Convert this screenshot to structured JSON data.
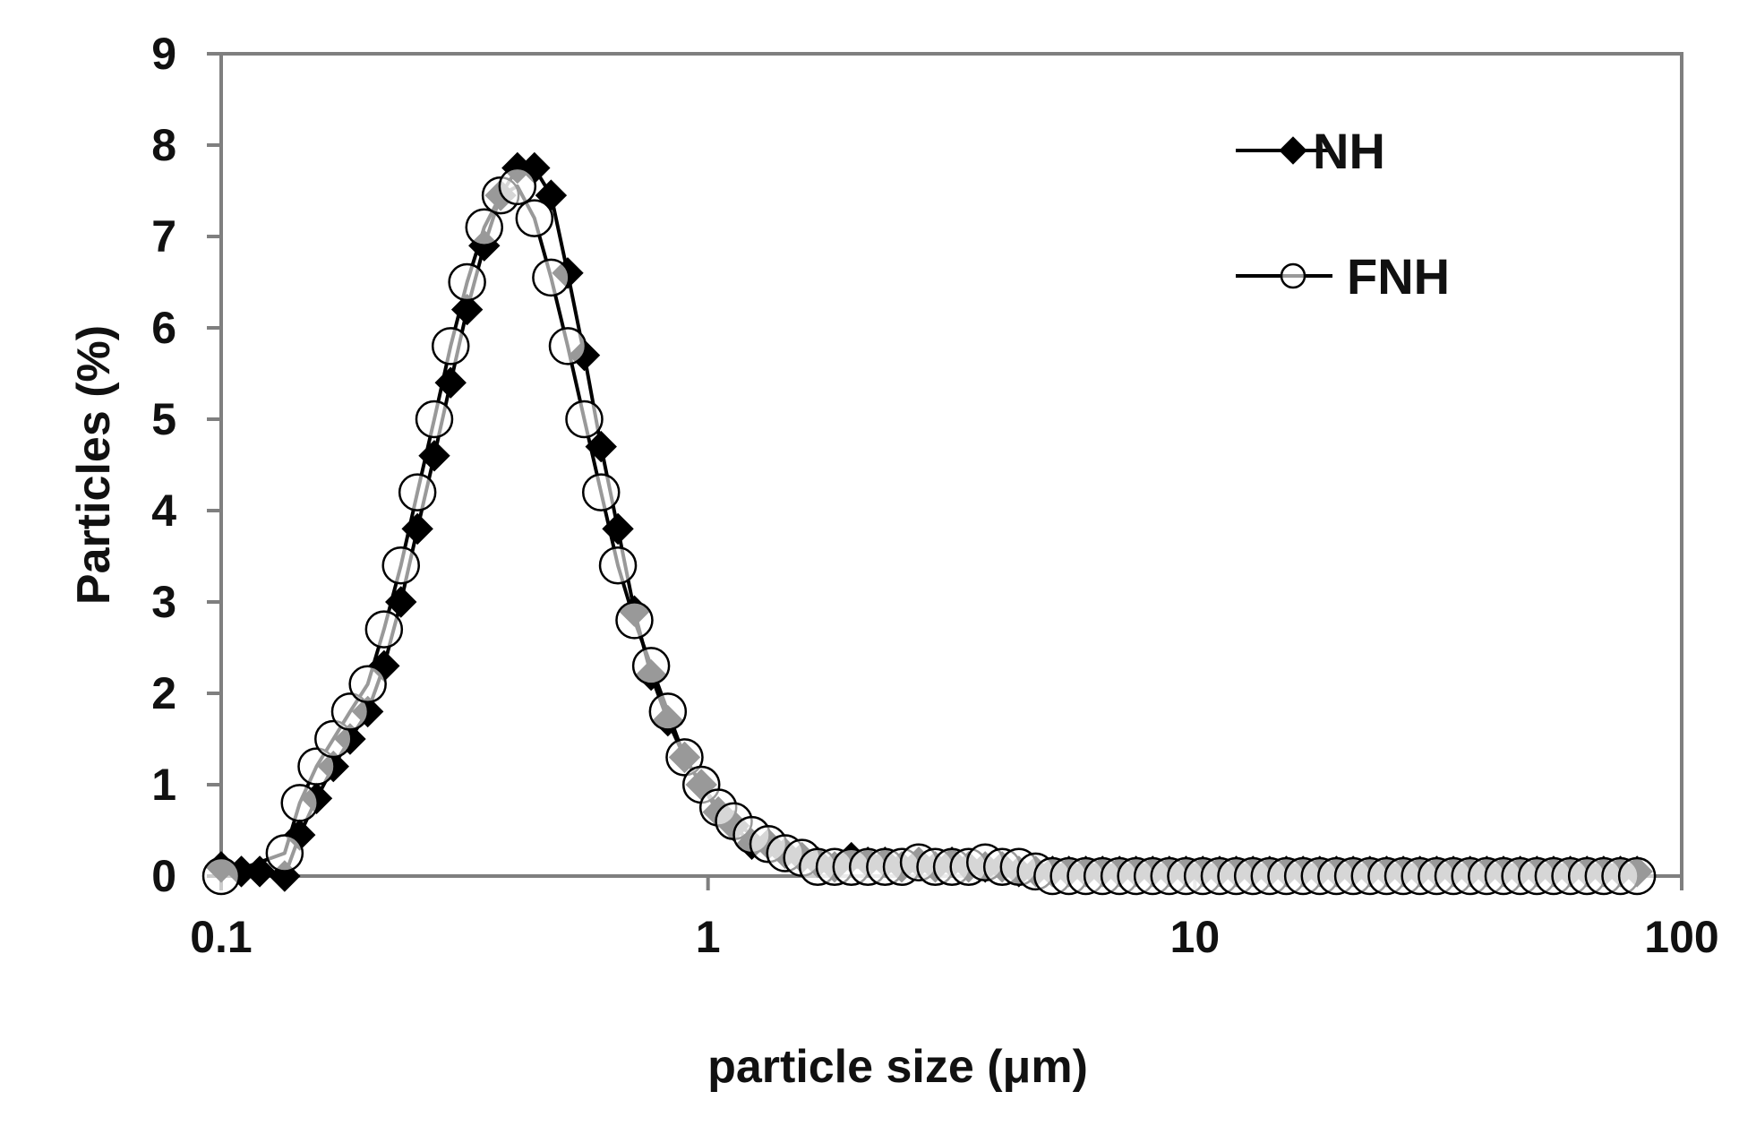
{
  "colors": {
    "axis": "#7f7f7f",
    "series": "#000000",
    "background": "#ffffff"
  },
  "chart_data": {
    "type": "line",
    "xlabel": "particle size (μm)",
    "ylabel": "Particles (%)",
    "xscale": "log",
    "xlim": [
      0.1,
      100
    ],
    "ylim": [
      0,
      9
    ],
    "xticks": [
      "0.1",
      "1",
      "10",
      "100"
    ],
    "yticks": [
      "0",
      "1",
      "2",
      "3",
      "4",
      "5",
      "6",
      "7",
      "8",
      "9"
    ],
    "grid": false,
    "legend_position": "top-right",
    "series": [
      {
        "name": "NH",
        "marker": "filled-diamond",
        "x": [
          0.1,
          0.11,
          0.12,
          0.135,
          0.145,
          0.157,
          0.17,
          0.184,
          0.2,
          0.216,
          0.234,
          0.253,
          0.274,
          0.296,
          0.32,
          0.347,
          0.375,
          0.406,
          0.44,
          0.476,
          0.515,
          0.557,
          0.603,
          0.653,
          0.706,
          0.764,
          0.827,
          0.895,
          0.969,
          1.05,
          1.13,
          1.23,
          1.33,
          1.44,
          1.56,
          1.68,
          1.82,
          1.97,
          2.13,
          2.31,
          2.5,
          2.71,
          2.93,
          3.17,
          3.43,
          3.71,
          4.02,
          4.35,
          4.71,
          5.1,
          5.51,
          5.97,
          6.46,
          7.0,
          7.57,
          8.19,
          8.86,
          9.59,
          10.38,
          11.24,
          12.16,
          13.16,
          14.24,
          15.41,
          16.68,
          18.05,
          19.53,
          21.14,
          22.88,
          24.76,
          26.79,
          28.99,
          31.38,
          33.96,
          36.75,
          39.77,
          43.04,
          46.58,
          50.41,
          54.55,
          59.03,
          63.88,
          69.13,
          74.81,
          80.96
        ],
        "y": [
          0.1,
          0.05,
          0.05,
          0.0,
          0.45,
          0.85,
          1.2,
          1.5,
          1.8,
          2.3,
          3.0,
          3.8,
          4.6,
          5.4,
          6.2,
          6.9,
          7.45,
          7.75,
          7.75,
          7.45,
          6.6,
          5.7,
          4.7,
          3.8,
          2.9,
          2.2,
          1.7,
          1.3,
          1.0,
          0.7,
          0.55,
          0.35,
          0.35,
          0.25,
          0.2,
          0.15,
          0.1,
          0.2,
          0.15,
          0.15,
          0.1,
          0.15,
          0.1,
          0.15,
          0.1,
          0.1,
          0.1,
          0.05,
          0.05,
          0.05,
          0.05,
          0.05,
          0.05,
          0.05,
          0.05,
          0.05,
          0.05,
          0.05,
          0.05,
          0.05,
          0.05,
          0.05,
          0.05,
          0.05,
          0.05,
          0.05,
          0.05,
          0.05,
          0.05,
          0.05,
          0.05,
          0.05,
          0.05,
          0.05,
          0.05,
          0.05,
          0.05,
          0.05,
          0.05,
          0.05,
          0.05,
          0.05,
          0.05,
          0.05,
          0.05
        ]
      },
      {
        "name": "FNH",
        "marker": "open-circle",
        "x": [
          0.1,
          0.135,
          0.145,
          0.157,
          0.17,
          0.184,
          0.2,
          0.216,
          0.234,
          0.253,
          0.274,
          0.296,
          0.32,
          0.347,
          0.375,
          0.406,
          0.44,
          0.476,
          0.515,
          0.557,
          0.603,
          0.653,
          0.706,
          0.764,
          0.827,
          0.895,
          0.969,
          1.05,
          1.13,
          1.23,
          1.33,
          1.44,
          1.56,
          1.68,
          1.82,
          1.97,
          2.13,
          2.31,
          2.5,
          2.71,
          2.93,
          3.17,
          3.43,
          3.71,
          4.02,
          4.35,
          4.71,
          5.1,
          5.51,
          5.97,
          6.46,
          7.0,
          7.57,
          8.19,
          8.86,
          9.59,
          10.38,
          11.24,
          12.16,
          13.16,
          14.24,
          15.41,
          16.68,
          18.05,
          19.53,
          21.14,
          22.88,
          24.76,
          26.79,
          28.99,
          31.38,
          33.96,
          36.75,
          39.77,
          43.04,
          46.58,
          50.41,
          54.55,
          59.03,
          63.88,
          69.13,
          74.81,
          80.96
        ],
        "y": [
          0.0,
          0.25,
          0.8,
          1.2,
          1.5,
          1.8,
          2.1,
          2.7,
          3.4,
          4.2,
          5.0,
          5.8,
          6.5,
          7.1,
          7.45,
          7.55,
          7.2,
          6.55,
          5.8,
          5.0,
          4.2,
          3.4,
          2.8,
          2.3,
          1.8,
          1.3,
          1.0,
          0.75,
          0.6,
          0.45,
          0.35,
          0.25,
          0.2,
          0.1,
          0.1,
          0.1,
          0.1,
          0.1,
          0.1,
          0.15,
          0.1,
          0.1,
          0.1,
          0.15,
          0.1,
          0.1,
          0.05,
          0.0,
          0.0,
          0.0,
          0.0,
          0.0,
          0.0,
          0.0,
          0.0,
          0.0,
          0.0,
          0.0,
          0.0,
          0.0,
          0.0,
          0.0,
          0.0,
          0.0,
          0.0,
          0.0,
          0.0,
          0.0,
          0.0,
          0.0,
          0.0,
          0.0,
          0.0,
          0.0,
          0.0,
          0.0,
          0.0,
          0.0,
          0.0,
          0.0,
          0.0,
          0.0,
          0.0
        ]
      }
    ]
  }
}
